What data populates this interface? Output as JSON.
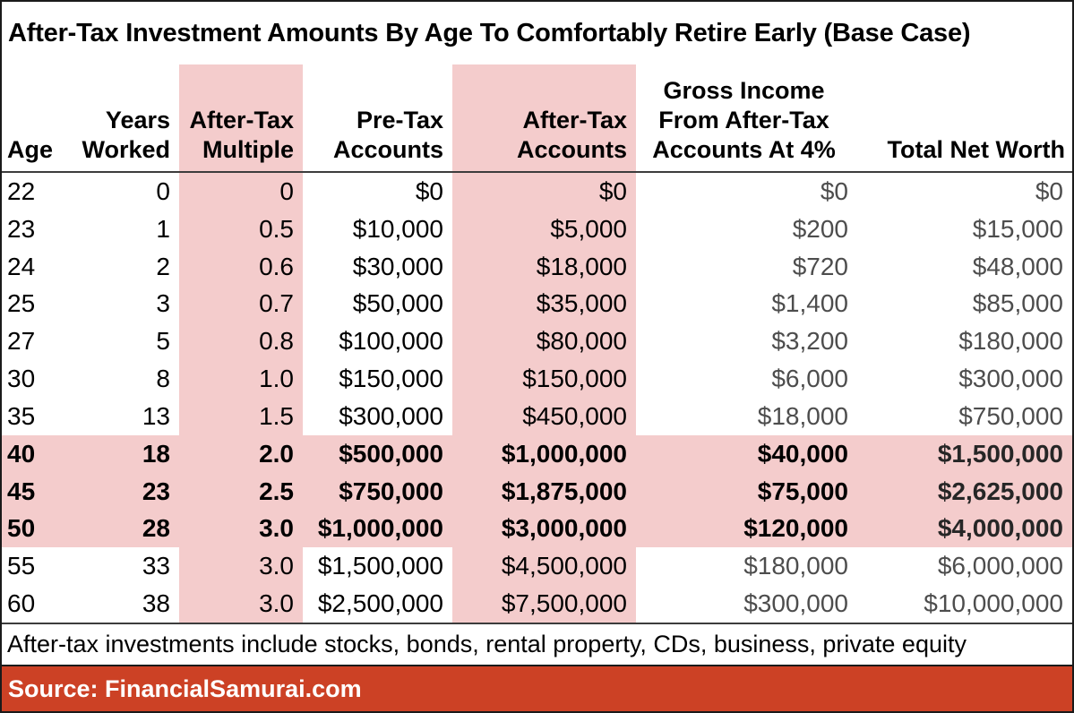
{
  "chart_data": {
    "type": "table",
    "title": "After-Tax Investment Amounts By Age To Comfortably Retire Early (Base Case)",
    "columns": [
      {
        "id": "age",
        "label": "Age",
        "lines": [
          "Age"
        ],
        "highlight": false
      },
      {
        "id": "years",
        "label": "Years Worked",
        "lines": [
          "Years",
          "Worked"
        ],
        "highlight": false
      },
      {
        "id": "multiple",
        "label": "After-Tax Multiple",
        "lines": [
          "After-Tax",
          "Multiple"
        ],
        "highlight": true
      },
      {
        "id": "pretax",
        "label": "Pre-Tax Accounts",
        "lines": [
          "Pre-Tax",
          "Accounts"
        ],
        "highlight": false
      },
      {
        "id": "aftertax",
        "label": "After-Tax Accounts",
        "lines": [
          "After-Tax",
          "Accounts"
        ],
        "highlight": true
      },
      {
        "id": "gross",
        "label": "Gross Income From After-Tax Accounts At 4%",
        "lines": [
          "Gross Income",
          "From After-Tax",
          "Accounts At 4%"
        ],
        "highlight": false
      },
      {
        "id": "networth",
        "label": "Total Net Worth",
        "lines": [
          "Total Net Worth"
        ],
        "highlight": false
      }
    ],
    "rows": [
      {
        "age": "22",
        "years": "0",
        "multiple": "0",
        "pretax": "$0",
        "aftertax": "$0",
        "gross": "$0",
        "networth": "$0",
        "highlight": false
      },
      {
        "age": "23",
        "years": "1",
        "multiple": "0.5",
        "pretax": "$10,000",
        "aftertax": "$5,000",
        "gross": "$200",
        "networth": "$15,000",
        "highlight": false
      },
      {
        "age": "24",
        "years": "2",
        "multiple": "0.6",
        "pretax": "$30,000",
        "aftertax": "$18,000",
        "gross": "$720",
        "networth": "$48,000",
        "highlight": false
      },
      {
        "age": "25",
        "years": "3",
        "multiple": "0.7",
        "pretax": "$50,000",
        "aftertax": "$35,000",
        "gross": "$1,400",
        "networth": "$85,000",
        "highlight": false
      },
      {
        "age": "27",
        "years": "5",
        "multiple": "0.8",
        "pretax": "$100,000",
        "aftertax": "$80,000",
        "gross": "$3,200",
        "networth": "$180,000",
        "highlight": false
      },
      {
        "age": "30",
        "years": "8",
        "multiple": "1.0",
        "pretax": "$150,000",
        "aftertax": "$150,000",
        "gross": "$6,000",
        "networth": "$300,000",
        "highlight": false
      },
      {
        "age": "35",
        "years": "13",
        "multiple": "1.5",
        "pretax": "$300,000",
        "aftertax": "$450,000",
        "gross": "$18,000",
        "networth": "$750,000",
        "highlight": false
      },
      {
        "age": "40",
        "years": "18",
        "multiple": "2.0",
        "pretax": "$500,000",
        "aftertax": "$1,000,000",
        "gross": "$40,000",
        "networth": "$1,500,000",
        "highlight": true
      },
      {
        "age": "45",
        "years": "23",
        "multiple": "2.5",
        "pretax": "$750,000",
        "aftertax": "$1,875,000",
        "gross": "$75,000",
        "networth": "$2,625,000",
        "highlight": true
      },
      {
        "age": "50",
        "years": "28",
        "multiple": "3.0",
        "pretax": "$1,000,000",
        "aftertax": "$3,000,000",
        "gross": "$120,000",
        "networth": "$4,000,000",
        "highlight": true
      },
      {
        "age": "55",
        "years": "33",
        "multiple": "3.0",
        "pretax": "$1,500,000",
        "aftertax": "$4,500,000",
        "gross": "$180,000",
        "networth": "$6,000,000",
        "highlight": false
      },
      {
        "age": "60",
        "years": "38",
        "multiple": "3.0",
        "pretax": "$2,500,000",
        "aftertax": "$7,500,000",
        "gross": "$300,000",
        "networth": "$10,000,000",
        "highlight": false
      }
    ],
    "highlighted_columns": [
      "multiple",
      "aftertax"
    ],
    "highlighted_row_ages": [
      "40",
      "45",
      "50"
    ],
    "layout": {
      "grid": "off",
      "header_position": "top"
    }
  },
  "footnote": "After-tax investments include stocks, bonds, rental property, CDs, business, private equity",
  "source_bar": {
    "label": "Source: FinancialSamurai.com"
  },
  "colors": {
    "highlight_pink": "#f4cccc",
    "source_bar_red": "#cc4125",
    "muted_text": "#4d4d4d",
    "text": "#000000",
    "border": "#1a1a1a"
  }
}
